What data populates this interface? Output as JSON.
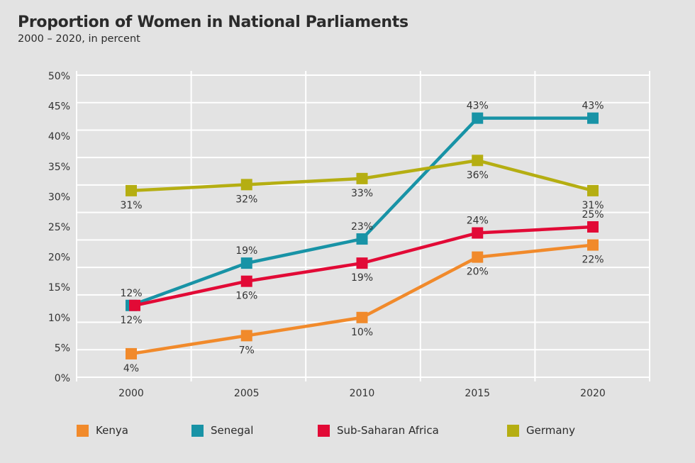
{
  "chart_data": {
    "type": "line",
    "title": "Proportion of Women in National Parliaments",
    "subtitle": "2000 – 2020, in percent",
    "xlabel": "",
    "ylabel": "",
    "x": [
      "2000",
      "2005",
      "2010",
      "2015",
      "2020"
    ],
    "ylim": [
      0,
      50
    ],
    "yticks": [
      "0%",
      "5%",
      "10%",
      "15%",
      "20%",
      "25%",
      "30%",
      "35%",
      "40%",
      "45%",
      "50%"
    ],
    "grid": true,
    "legend_position": "bottom",
    "series": [
      {
        "name": "Kenya",
        "color": "#f18a2b",
        "values": [
          4,
          7,
          10,
          20,
          22
        ],
        "labels": [
          "4%",
          "7%",
          "10%",
          "20%",
          "22%"
        ],
        "label_pos": [
          "below",
          "below",
          "below",
          "below",
          "below"
        ]
      },
      {
        "name": "Senegal",
        "color": "#1893a6",
        "values": [
          12,
          19,
          23,
          43,
          43
        ],
        "labels": [
          "12%",
          "19%",
          "23%",
          "43%",
          "43%"
        ],
        "label_pos": [
          "below",
          "above",
          "above",
          "above",
          "above"
        ]
      },
      {
        "name": "Sub-Saharan Africa",
        "color": "#e20a36",
        "values": [
          12,
          16,
          19,
          24,
          25
        ],
        "labels": [
          "12%",
          "16%",
          "19%",
          "24%",
          "25%"
        ],
        "label_pos": [
          "above",
          "below",
          "below",
          "above",
          "above"
        ]
      },
      {
        "name": "Germany",
        "color": "#b5ae12",
        "values": [
          31,
          32,
          33,
          36,
          31
        ],
        "labels": [
          "31%",
          "32%",
          "33%",
          "36%",
          "31%"
        ],
        "label_pos": [
          "below",
          "below",
          "below",
          "below",
          "below"
        ]
      }
    ]
  }
}
